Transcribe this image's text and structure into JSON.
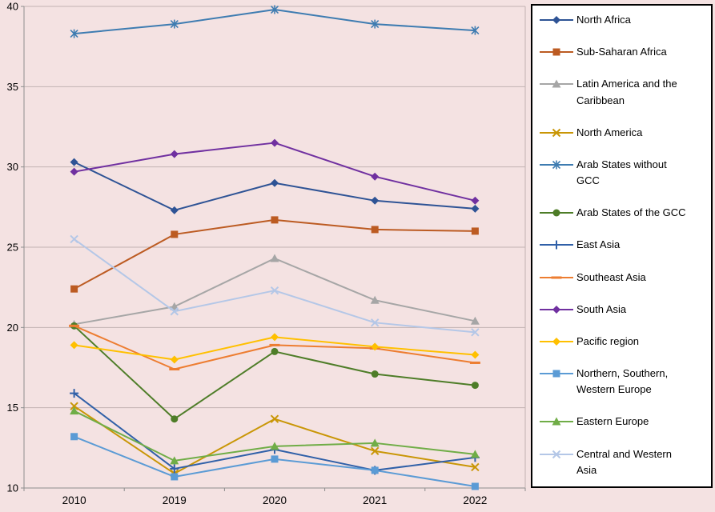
{
  "chart_data": {
    "type": "line",
    "title": "",
    "xlabel": "",
    "ylabel": "",
    "categories": [
      "2010",
      "2019",
      "2020",
      "2021",
      "2022"
    ],
    "ylim": [
      10,
      40
    ],
    "y_ticks": [
      10,
      15,
      20,
      25,
      30,
      35,
      40
    ],
    "grid": true,
    "legend_position": "right",
    "colors": {
      "plot_bg": "#F4E2E2",
      "grid": "#C2B2B2",
      "axis": "#8E8E8E",
      "legend_bg": "#FFFFFF",
      "legend_border": "#000000",
      "text": "#000000"
    },
    "series": [
      {
        "name": "North Africa",
        "color": "#2E5395",
        "marker": "diamond",
        "values": [
          30.3,
          27.3,
          29.0,
          27.9,
          27.4
        ]
      },
      {
        "name": "Sub-Saharan Africa",
        "color": "#BC5B22",
        "marker": "square",
        "values": [
          22.4,
          25.8,
          26.7,
          26.1,
          26.0
        ]
      },
      {
        "name": "Latin America and the Caribbean",
        "color": "#A6A6A6",
        "marker": "triangle",
        "values": [
          20.2,
          21.3,
          24.3,
          21.7,
          20.4
        ]
      },
      {
        "name": "North America",
        "color": "#C99606",
        "marker": "x",
        "values": [
          15.1,
          10.9,
          14.3,
          12.3,
          11.3
        ]
      },
      {
        "name": "Arab States without GCC",
        "color": "#3E7CB1",
        "marker": "star",
        "values": [
          38.3,
          38.9,
          39.8,
          38.9,
          38.5
        ]
      },
      {
        "name": "Arab States of the GCC",
        "color": "#4E7D28",
        "marker": "circle",
        "values": [
          20.1,
          14.3,
          18.5,
          17.1,
          16.4
        ]
      },
      {
        "name": "East Asia",
        "color": "#3060A8",
        "marker": "plus",
        "values": [
          15.9,
          11.2,
          12.4,
          11.1,
          11.9
        ]
      },
      {
        "name": "Southeast Asia",
        "color": "#ED7D31",
        "marker": "dash",
        "values": [
          20.1,
          17.4,
          18.9,
          18.7,
          17.8
        ]
      },
      {
        "name": "South Asia",
        "color": "#7030A0",
        "marker": "diamond",
        "values": [
          29.7,
          30.8,
          31.5,
          29.4,
          27.9
        ]
      },
      {
        "name": "Pacific region",
        "color": "#FFC000",
        "marker": "diamond",
        "values": [
          18.9,
          18.0,
          19.4,
          18.8,
          18.3
        ]
      },
      {
        "name": "Northern, Southern, Western Europe",
        "color": "#5B9BD5",
        "marker": "square",
        "values": [
          13.2,
          10.7,
          11.8,
          11.1,
          10.1
        ]
      },
      {
        "name": "Eastern Europe",
        "color": "#70AD47",
        "marker": "triangle",
        "values": [
          14.8,
          11.7,
          12.6,
          12.8,
          12.1
        ]
      },
      {
        "name": "Central and Western Asia",
        "color": "#B4C7E7",
        "marker": "x",
        "values": [
          25.5,
          21.0,
          22.3,
          20.3,
          19.7
        ]
      }
    ]
  }
}
